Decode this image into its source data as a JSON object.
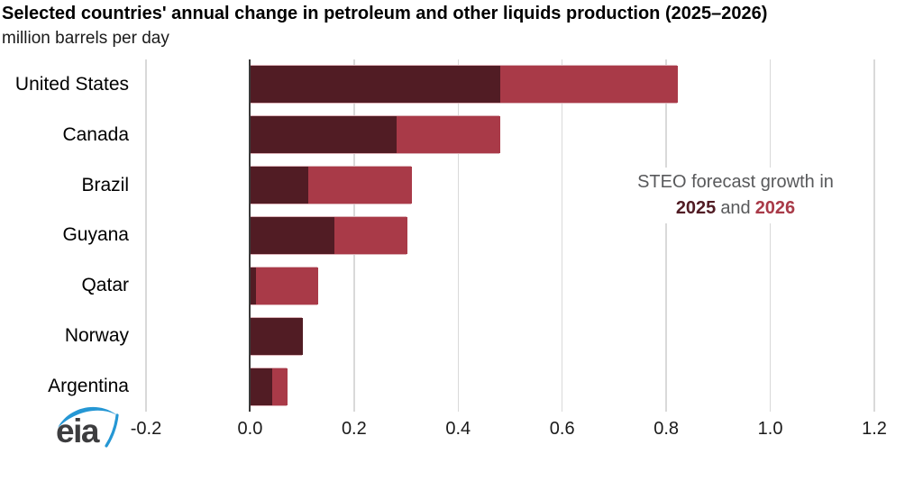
{
  "title": "Selected countries' annual change in petroleum and other liquids production (2025–2026)",
  "subtitle": "million barrels per day",
  "annotation": {
    "line1": "STEO forecast growth in",
    "year_2025": "2025",
    "connector": "and",
    "year_2026": "2026"
  },
  "logo_text": "eia",
  "colors": {
    "series_2025": "#511c24",
    "series_2026": "#a93a48",
    "gridline": "#d9d9d9",
    "zero_line": "#3a3a3a",
    "annotation_gray": "#58595b",
    "bar_edge": "#ddb3b9",
    "logo_blue": "#2597d4",
    "logo_text": "#3d3d3f"
  },
  "chart_data": {
    "type": "bar",
    "orientation": "horizontal",
    "stacked": true,
    "title": "Selected countries' annual change in petroleum and other liquids production (2025–2026)",
    "ylabel": "million barrels per day",
    "xlabel": "",
    "categories": [
      "United States",
      "Canada",
      "Brazil",
      "Guyana",
      "Qatar",
      "Norway",
      "Argentina"
    ],
    "series": [
      {
        "name": "2025",
        "values": [
          0.48,
          0.28,
          0.11,
          0.16,
          0.01,
          0.1,
          0.04
        ]
      },
      {
        "name": "2026",
        "values": [
          0.34,
          0.2,
          0.2,
          0.14,
          0.12,
          0.0,
          0.03
        ]
      }
    ],
    "xlim": [
      -0.2,
      1.2
    ],
    "xticks": [
      "-0.2",
      "0.0",
      "0.2",
      "0.4",
      "0.6",
      "0.8",
      "1.0",
      "1.2"
    ],
    "grid": true,
    "legend_position": "none",
    "annotation_note": "STEO forecast growth in 2025 and 2026"
  }
}
